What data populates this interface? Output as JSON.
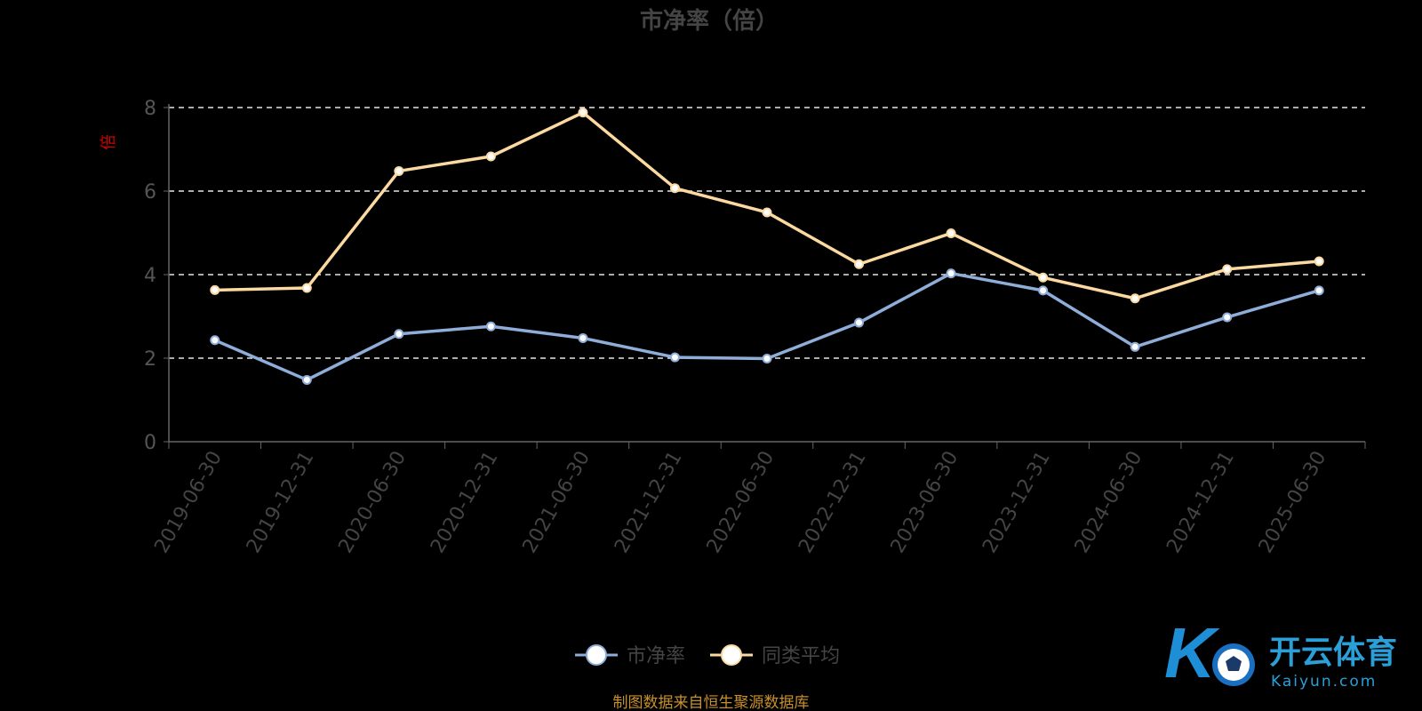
{
  "chart_data": {
    "type": "line",
    "title": "市净率（倍）",
    "ylabel": "倍",
    "xlabel": "",
    "ylim": [
      0,
      8
    ],
    "yticks": [
      0,
      2,
      4,
      6,
      8
    ],
    "grid": true,
    "legend_position": "bottom-center",
    "categories": [
      "2019-06-30",
      "2019-12-31",
      "2020-06-30",
      "2020-12-31",
      "2021-06-30",
      "2021-12-31",
      "2022-06-30",
      "2022-12-31",
      "2023-06-30",
      "2023-12-31",
      "2024-06-30",
      "2024-12-31",
      "2025-06-30"
    ],
    "series": [
      {
        "name": "市净率",
        "color": "#8fadd9",
        "values": [
          2.43,
          1.48,
          2.58,
          2.76,
          2.48,
          2.02,
          1.99,
          2.85,
          4.03,
          3.62,
          2.27,
          2.98,
          3.62
        ]
      },
      {
        "name": "同类平均",
        "color": "#fcd9a0",
        "values": [
          3.63,
          3.68,
          6.48,
          6.83,
          7.88,
          6.07,
          5.49,
          4.25,
          4.99,
          3.93,
          3.43,
          4.13,
          4.32
        ]
      }
    ]
  },
  "footer": {
    "source": "制图数据来自恒生聚源数据库"
  },
  "watermark": {
    "brand": "开云体育",
    "domain": "Kaiyun.com",
    "logo_letter": "K"
  }
}
